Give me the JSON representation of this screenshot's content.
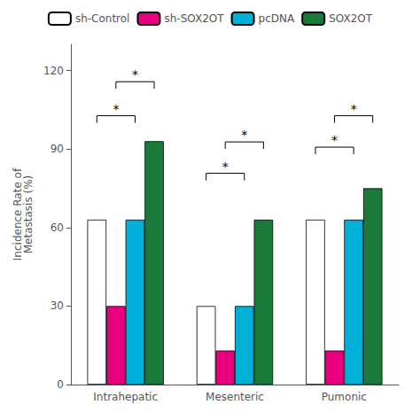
{
  "chart_data": {
    "type": "bar",
    "ylabel": "Incidence Rate of\nMetastasis (%)",
    "categories": [
      "Intrahepatic",
      "Mesenteric",
      "Pumonic"
    ],
    "series": [
      {
        "name": "sh-Control",
        "color": "white",
        "values": [
          63,
          30,
          63
        ]
      },
      {
        "name": "sh-SOX2OT",
        "color": "#e8007f",
        "values": [
          30,
          13,
          13
        ]
      },
      {
        "name": "pcDNA",
        "color": "#00b0d8",
        "values": [
          63,
          30,
          63
        ]
      },
      {
        "name": "SOX2OT",
        "color": "#1a7a3a",
        "values": [
          93,
          63,
          75
        ]
      }
    ],
    "annotations": [
      {
        "category": "Intrahepatic",
        "between": [
          "sh-Control",
          "pcDNA"
        ],
        "y": 100,
        "text": "*"
      },
      {
        "category": "Intrahepatic",
        "between": [
          "sh-SOX2OT",
          "SOX2OT"
        ],
        "y": 113,
        "text": "*"
      },
      {
        "category": "Mesenteric",
        "between": [
          "sh-Control",
          "pcDNA"
        ],
        "y": 78,
        "text": "*"
      },
      {
        "category": "Mesenteric",
        "between": [
          "sh-SOX2OT",
          "SOX2OT"
        ],
        "y": 90,
        "text": "*"
      },
      {
        "category": "Pumonic",
        "between": [
          "sh-Control",
          "pcDNA"
        ],
        "y": 88,
        "text": "*"
      },
      {
        "category": "Pumonic",
        "between": [
          "sh-SOX2OT",
          "SOX2OT"
        ],
        "y": 100,
        "text": "*"
      }
    ],
    "ylim": [
      0,
      130
    ],
    "yticks": [
      0,
      30,
      60,
      90,
      120
    ],
    "grid": false,
    "legend": "top"
  }
}
